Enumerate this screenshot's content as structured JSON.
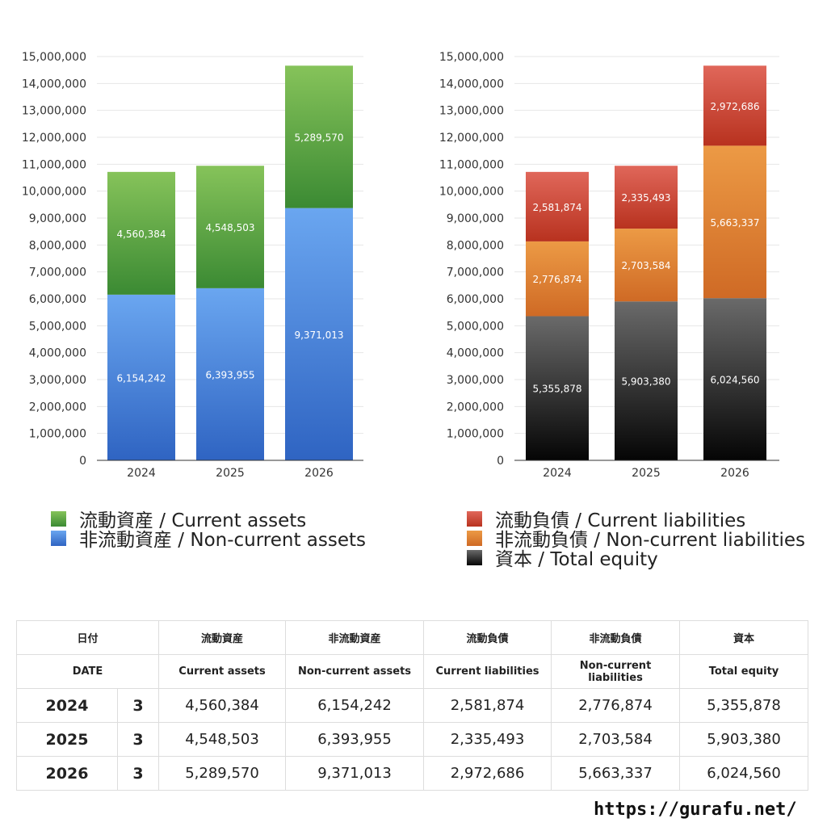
{
  "chart_data": [
    {
      "type": "bar",
      "stacked": true,
      "categories": [
        "2024",
        "2025",
        "2026"
      ],
      "ylim": [
        0,
        15000000
      ],
      "yticks": [
        "0",
        "1,000,000",
        "2,000,000",
        "3,000,000",
        "4,000,000",
        "5,000,000",
        "6,000,000",
        "7,000,000",
        "8,000,000",
        "9,000,000",
        "10,000,000",
        "11,000,000",
        "12,000,000",
        "13,000,000",
        "14,000,000",
        "15,000,000"
      ],
      "grid": true,
      "legend_position": "bottom",
      "series": [
        {
          "name": "非流動資産 / Non-current assets",
          "values": [
            6154242,
            6393955,
            9371013
          ],
          "labels": [
            "6,154,242",
            "6,393,955",
            "9,371,013"
          ],
          "color_top": "#6aa6f0",
          "color_bottom": "#2f64c2"
        },
        {
          "name": "流動資産 / Current assets",
          "values": [
            4560384,
            4548503,
            5289570
          ],
          "labels": [
            "4,560,384",
            "4,548,503",
            "5,289,570"
          ],
          "color_top": "#86c35a",
          "color_bottom": "#3b8a33"
        }
      ]
    },
    {
      "type": "bar",
      "stacked": true,
      "categories": [
        "2024",
        "2025",
        "2026"
      ],
      "ylim": [
        0,
        15000000
      ],
      "yticks": [
        "0",
        "1,000,000",
        "2,000,000",
        "3,000,000",
        "4,000,000",
        "5,000,000",
        "6,000,000",
        "7,000,000",
        "8,000,000",
        "9,000,000",
        "10,000,000",
        "11,000,000",
        "12,000,000",
        "13,000,000",
        "14,000,000",
        "15,000,000"
      ],
      "grid": true,
      "legend_position": "bottom",
      "series": [
        {
          "name": "資本 / Total equity",
          "values": [
            5355878,
            5903380,
            6024560
          ],
          "labels": [
            "5,355,878",
            "5,903,380",
            "6,024,560"
          ],
          "color_top": "#6a6a6a",
          "color_bottom": "#050505"
        },
        {
          "name": "非流動負債 / Non-current liabilities",
          "values": [
            2776874,
            2703584,
            5663337
          ],
          "labels": [
            "2,776,874",
            "2,703,584",
            "5,663,337"
          ],
          "color_top": "#ec9a45",
          "color_bottom": "#cf6a25"
        },
        {
          "name": "流動負債 / Current liabilities",
          "values": [
            2581874,
            2335493,
            2972686
          ],
          "labels": [
            "2,581,874",
            "2,335,493",
            "2,972,686"
          ],
          "color_top": "#e0675a",
          "color_bottom": "#b8321f"
        }
      ]
    }
  ],
  "legend_left": [
    {
      "label": "流動資産 / Current assets",
      "color": "#4e9a3c"
    },
    {
      "label": "非流動資産 / Non-current assets",
      "color": "#4a86dc"
    }
  ],
  "legend_right": [
    {
      "label": "流動負債 / Current liabilities",
      "color": "#cf4a35"
    },
    {
      "label": "非流動負債 / Non-current liabilities",
      "color": "#e0832f"
    },
    {
      "label": "資本 / Total equity",
      "color": "#222222"
    }
  ],
  "table": {
    "header_jp": [
      "日付",
      "",
      "流動資産",
      "非流動資産",
      "流動負債",
      "非流動負債",
      "資本"
    ],
    "header_en": [
      "DATE",
      "",
      "Current assets",
      "Non-current assets",
      "Current liabilities",
      "Non-current liabilities",
      "Total equity"
    ],
    "rows": [
      {
        "year": "2024",
        "count": "3",
        "values": [
          "4,560,384",
          "6,154,242",
          "2,581,874",
          "2,776,874",
          "5,355,878"
        ]
      },
      {
        "year": "2025",
        "count": "3",
        "values": [
          "4,548,503",
          "6,393,955",
          "2,335,493",
          "2,703,584",
          "5,903,380"
        ]
      },
      {
        "year": "2026",
        "count": "3",
        "values": [
          "5,289,570",
          "9,371,013",
          "2,972,686",
          "5,663,337",
          "6,024,560"
        ]
      }
    ]
  },
  "site_url": "https://gurafu.net/"
}
